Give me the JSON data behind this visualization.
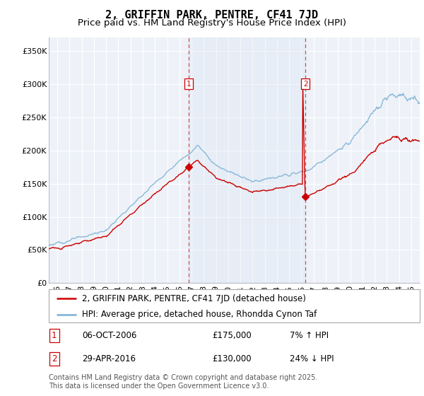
{
  "title": "2, GRIFFIN PARK, PENTRE, CF41 7JD",
  "subtitle": "Price paid vs. HM Land Registry's House Price Index (HPI)",
  "ylabel_ticks": [
    "£0",
    "£50K",
    "£100K",
    "£150K",
    "£200K",
    "£250K",
    "£300K",
    "£350K"
  ],
  "ytick_values": [
    0,
    50000,
    100000,
    150000,
    200000,
    250000,
    300000,
    350000
  ],
  "ylim": [
    0,
    370000
  ],
  "xlim_start": 1995.3,
  "xlim_end": 2025.7,
  "red_line_color": "#cc0000",
  "blue_line_color": "#7ab0d4",
  "background_color": "#ffffff",
  "plot_bg_color": "#eef2f8",
  "grid_color": "#ffffff",
  "marker1_x": 2006.76,
  "marker2_x": 2016.33,
  "marker1_label": "1",
  "marker2_label": "2",
  "sale1_price": 175000,
  "sale2_price": 130000,
  "legend_line1": "2, GRIFFIN PARK, PENTRE, CF41 7JD (detached house)",
  "legend_line2": "HPI: Average price, detached house, Rhondda Cynon Taf",
  "annotation1_date": "06-OCT-2006",
  "annotation1_price": "£175,000",
  "annotation1_hpi": "7% ↑ HPI",
  "annotation2_date": "29-APR-2016",
  "annotation2_price": "£130,000",
  "annotation2_hpi": "24% ↓ HPI",
  "footnote": "Contains HM Land Registry data © Crown copyright and database right 2025.\nThis data is licensed under the Open Government Licence v3.0.",
  "title_fontsize": 11,
  "subtitle_fontsize": 9.5,
  "tick_fontsize": 8,
  "legend_fontsize": 8.5,
  "annotation_fontsize": 8.5
}
